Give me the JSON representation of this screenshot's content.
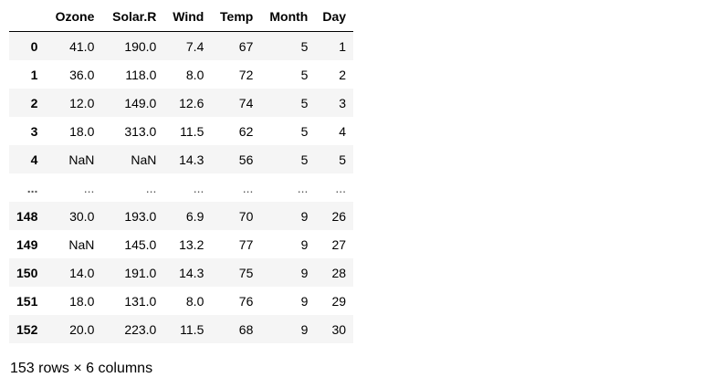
{
  "table": {
    "columns": [
      "",
      "Ozone",
      "Solar.R",
      "Wind",
      "Temp",
      "Month",
      "Day"
    ],
    "rows": [
      [
        "0",
        "41.0",
        "190.0",
        "7.4",
        "67",
        "5",
        "1"
      ],
      [
        "1",
        "36.0",
        "118.0",
        "8.0",
        "72",
        "5",
        "2"
      ],
      [
        "2",
        "12.0",
        "149.0",
        "12.6",
        "74",
        "5",
        "3"
      ],
      [
        "3",
        "18.0",
        "313.0",
        "11.5",
        "62",
        "5",
        "4"
      ],
      [
        "4",
        "NaN",
        "NaN",
        "14.3",
        "56",
        "5",
        "5"
      ],
      [
        "...",
        "...",
        "...",
        "...",
        "...",
        "...",
        "..."
      ],
      [
        "148",
        "30.0",
        "193.0",
        "6.9",
        "70",
        "9",
        "26"
      ],
      [
        "149",
        "NaN",
        "145.0",
        "13.2",
        "77",
        "9",
        "27"
      ],
      [
        "150",
        "14.0",
        "191.0",
        "14.3",
        "75",
        "9",
        "28"
      ],
      [
        "151",
        "18.0",
        "131.0",
        "8.0",
        "76",
        "9",
        "29"
      ],
      [
        "152",
        "20.0",
        "223.0",
        "11.5",
        "68",
        "9",
        "30"
      ]
    ]
  },
  "footer": {
    "summary": "153 rows × 6 columns"
  }
}
